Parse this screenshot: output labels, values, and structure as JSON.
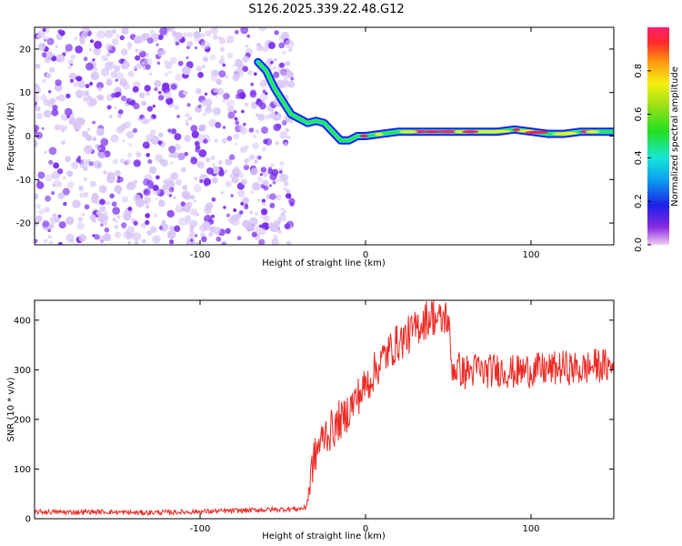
{
  "title": "S126.2025.339.22.48.G12",
  "colors": {
    "snr_line": "#ee2a24",
    "scatter_strong": "#7a2ff0",
    "scatter_faint": "#d9c6f7",
    "ridge_outer": "#1c20e8",
    "ridge_mid": "#18e6d6",
    "ridge_core": "#ff1f4f",
    "axis": "#000000"
  },
  "chart_data": [
    {
      "type": "heatmap",
      "name": "spectrogram",
      "xlabel": "Height of straight line (km)",
      "ylabel": "Frequency (Hz)",
      "xlim": [
        -200,
        150
      ],
      "ylim": [
        -25,
        25
      ],
      "x_ticks": [
        -100,
        0,
        100
      ],
      "y_ticks": [
        -20,
        -10,
        0,
        10,
        20
      ],
      "noise_region_x": [
        -200,
        -50
      ],
      "ridge": {
        "x": [
          -65,
          -60,
          -55,
          -50,
          -45,
          -40,
          -35,
          -30,
          -25,
          -20,
          -15,
          -10,
          -5,
          0,
          10,
          20,
          30,
          40,
          50,
          60,
          70,
          80,
          90,
          100,
          110,
          120,
          130,
          140,
          150
        ],
        "y": [
          17,
          15,
          11,
          8,
          5,
          4,
          3,
          3.5,
          3,
          1,
          -1,
          -1,
          0,
          0,
          0.5,
          1,
          1,
          1,
          1,
          1,
          1,
          1,
          1.5,
          1,
          0.5,
          0.5,
          1,
          1,
          1
        ]
      },
      "colorbar": {
        "label": "Normalized spectral amplitude",
        "range": [
          0,
          1
        ],
        "ticks": [
          0.0,
          0.2,
          0.4,
          0.6,
          0.8
        ]
      }
    },
    {
      "type": "line",
      "name": "snr",
      "xlabel": "Height of straight line (km)",
      "ylabel": "SNR (10 * v/v)",
      "xlim": [
        -200,
        150
      ],
      "ylim": [
        0,
        440
      ],
      "x_ticks": [
        -100,
        0,
        100
      ],
      "y_ticks": [
        0,
        100,
        200,
        300,
        400
      ],
      "series": [
        {
          "name": "SNR",
          "x": [
            -200,
            -180,
            -160,
            -140,
            -120,
            -100,
            -90,
            -80,
            -70,
            -60,
            -50,
            -40,
            -36,
            -34,
            -32,
            -30,
            -28,
            -26,
            -24,
            -22,
            -20,
            -18,
            -16,
            -14,
            -12,
            -10,
            -8,
            -6,
            -4,
            -2,
            0,
            2,
            4,
            6,
            8,
            10,
            12,
            14,
            16,
            18,
            20,
            22,
            24,
            26,
            28,
            30,
            32,
            34,
            36,
            38,
            40,
            42,
            44,
            46,
            48,
            50,
            52,
            54,
            56,
            58,
            60,
            62,
            64,
            66,
            68,
            70,
            80,
            90,
            100,
            110,
            120,
            130,
            140,
            150
          ],
          "values": [
            14,
            13,
            14,
            12,
            13,
            14,
            15,
            16,
            17,
            18,
            19,
            20,
            22,
            60,
            110,
            130,
            150,
            160,
            175,
            170,
            185,
            180,
            200,
            195,
            210,
            220,
            230,
            240,
            250,
            255,
            270,
            275,
            290,
            300,
            310,
            320,
            330,
            335,
            345,
            350,
            355,
            360,
            365,
            370,
            375,
            380,
            390,
            395,
            400,
            405,
            410,
            405,
            400,
            395,
            410,
            400,
            310,
            300,
            305,
            298,
            292,
            300,
            295,
            300,
            305,
            295,
            300,
            295,
            300,
            300,
            305,
            300,
            310,
            305
          ]
        }
      ]
    }
  ]
}
